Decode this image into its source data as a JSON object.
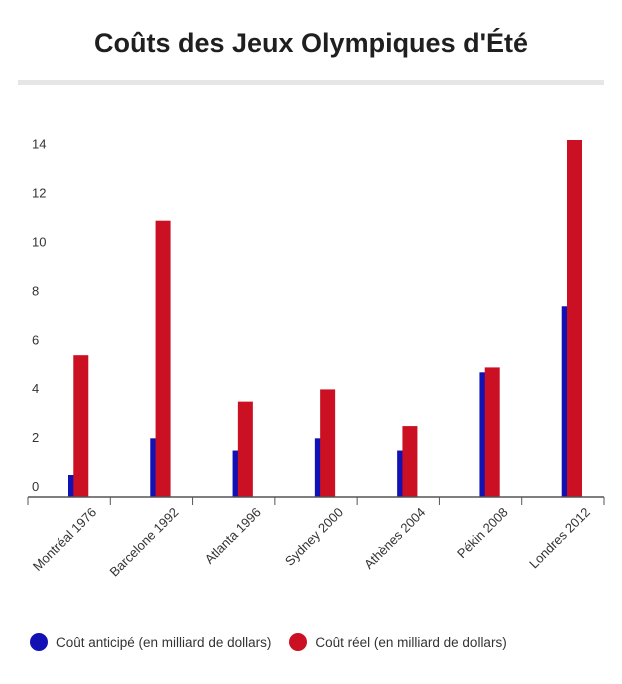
{
  "chart_data": {
    "type": "bar",
    "title": "Coûts des Jeux Olympiques d'Été",
    "categories": [
      "Montréal 1976",
      "Barcelone 1992",
      "Atlanta 1996",
      "Sydney 2000",
      "Athènes 2004",
      "Pékin 2008",
      "Londres 2012"
    ],
    "series": [
      {
        "name": "Coût anticipé (en milliard de dollars)",
        "color": "#1212b4",
        "values": [
          0.9,
          2.4,
          1.9,
          2.4,
          1.9,
          5.1,
          7.8
        ]
      },
      {
        "name": "Coût réel (en milliard de dollars)",
        "color": "#cc1023",
        "values": [
          5.8,
          11.3,
          3.9,
          4.4,
          2.9,
          5.3,
          14.6
        ]
      }
    ],
    "y_ticks": [
      "0",
      "2",
      "4",
      "6",
      "8",
      "10",
      "12",
      "14"
    ],
    "ylim": [
      0,
      14.6
    ],
    "grid": false,
    "legend_position": "bottom"
  }
}
